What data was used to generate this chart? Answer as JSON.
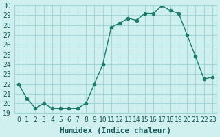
{
  "x": [
    0,
    1,
    2,
    3,
    4,
    5,
    6,
    7,
    8,
    9,
    10,
    11,
    12,
    13,
    14,
    15,
    16,
    17,
    18,
    19,
    20,
    21,
    22,
    23
  ],
  "y": [
    22,
    20.5,
    19.5,
    20,
    19.5,
    19.5,
    19.5,
    19.5,
    20,
    22,
    24,
    27.8,
    28.2,
    28.7,
    28.5,
    29.2,
    29.2,
    30,
    29.5,
    29.2,
    27,
    24.8,
    22.5,
    22.7
  ],
  "line_color": "#1a7a6a",
  "marker": "o",
  "marker_size": 3,
  "background_color": "#d0f0f0",
  "grid_color": "#a0d8d8",
  "xlabel": "Humidex (Indice chaleur)",
  "ylim": [
    19,
    30
  ],
  "xlim": [
    -0.5,
    23.5
  ],
  "yticks": [
    19,
    20,
    21,
    22,
    23,
    24,
    25,
    26,
    27,
    28,
    29,
    30
  ],
  "xticks": [
    0,
    1,
    2,
    3,
    4,
    5,
    6,
    7,
    8,
    9,
    10,
    11,
    12,
    13,
    14,
    15,
    16,
    17,
    18,
    19,
    20,
    21,
    22,
    23
  ],
  "xtick_labels": [
    "0",
    "1",
    "2",
    "3",
    "4",
    "5",
    "6",
    "7",
    "8",
    "9",
    "10",
    "11",
    "12",
    "13",
    "14",
    "15",
    "16",
    "17",
    "18",
    "19",
    "20",
    "21",
    "22",
    "23"
  ],
  "font_color": "#1a5a5a",
  "xlabel_fontsize": 8,
  "tick_fontsize": 7
}
